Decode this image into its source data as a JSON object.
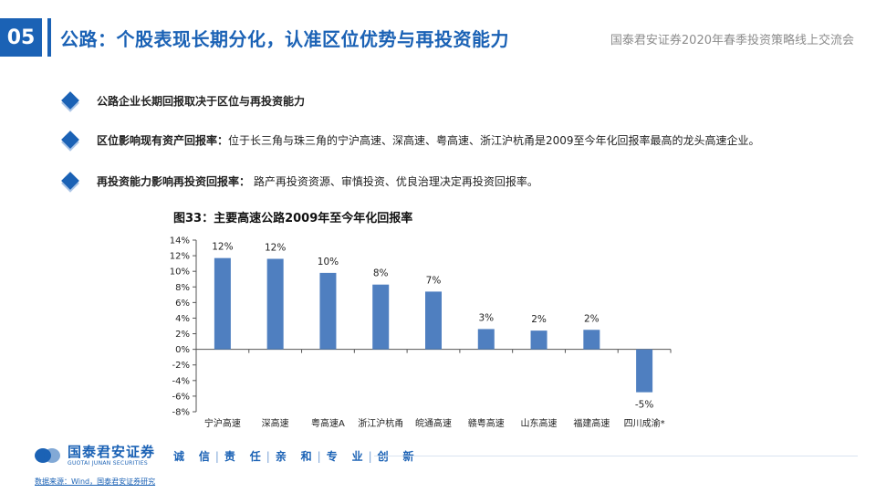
{
  "header": {
    "section_number": "05",
    "title": "公路：个股表现长期分化，认准区位优势与再投资能力",
    "event": "国泰君安证券2020年春季投资策略线上交流会"
  },
  "bullets": [
    {
      "label": "公路企业长期回报取决于区位与再投资能力",
      "text": ""
    },
    {
      "label": "区位影响现有资产回报率：",
      "text": "位于长三角与珠三角的宁沪高速、深高速、粤高速、浙江沪杭甬是2009至今年化回报率最高的龙头高速企业。"
    },
    {
      "label": "再投资能力影响再投资回报率：",
      "text": " 路产再投资资源、审慎投资、优良治理决定再投资回报率。"
    }
  ],
  "figure": {
    "title": "图33：主要高速公路2009年至今年化回报率"
  },
  "chart_data": {
    "type": "bar",
    "categories": [
      "宁沪高速",
      "深高速",
      "粤高速A",
      "浙江沪杭甬",
      "皖通高速",
      "赣粤高速",
      "山东高速",
      "福建高速",
      "四川成渝*"
    ],
    "values": [
      11.7,
      11.6,
      9.8,
      8.3,
      7.4,
      2.6,
      2.4,
      2.5,
      -5.5
    ],
    "data_labels": [
      "12%",
      "12%",
      "10%",
      "8%",
      "7%",
      "3%",
      "2%",
      "2%",
      "-5%"
    ],
    "yticks": [
      "14%",
      "12%",
      "10%",
      "8%",
      "6%",
      "4%",
      "2%",
      "0%",
      "-2%",
      "-4%",
      "-6%",
      "-8%"
    ],
    "ylim": [
      -8,
      14
    ],
    "ystep": 2,
    "grid": false,
    "bar_color": "#4f7fc0"
  },
  "footer": {
    "logo_cn": "国泰君安证券",
    "logo_en": "GUOTAI JUNAN SECURITIES",
    "slogan": [
      "诚",
      "信",
      "责",
      "任",
      "亲",
      "和",
      "专",
      "业",
      "创",
      "新"
    ],
    "source": "数据来源：Wind，国泰君安证券研究"
  },
  "colors": {
    "brand": "#1b62b5",
    "muted": "#8c8c8c"
  }
}
